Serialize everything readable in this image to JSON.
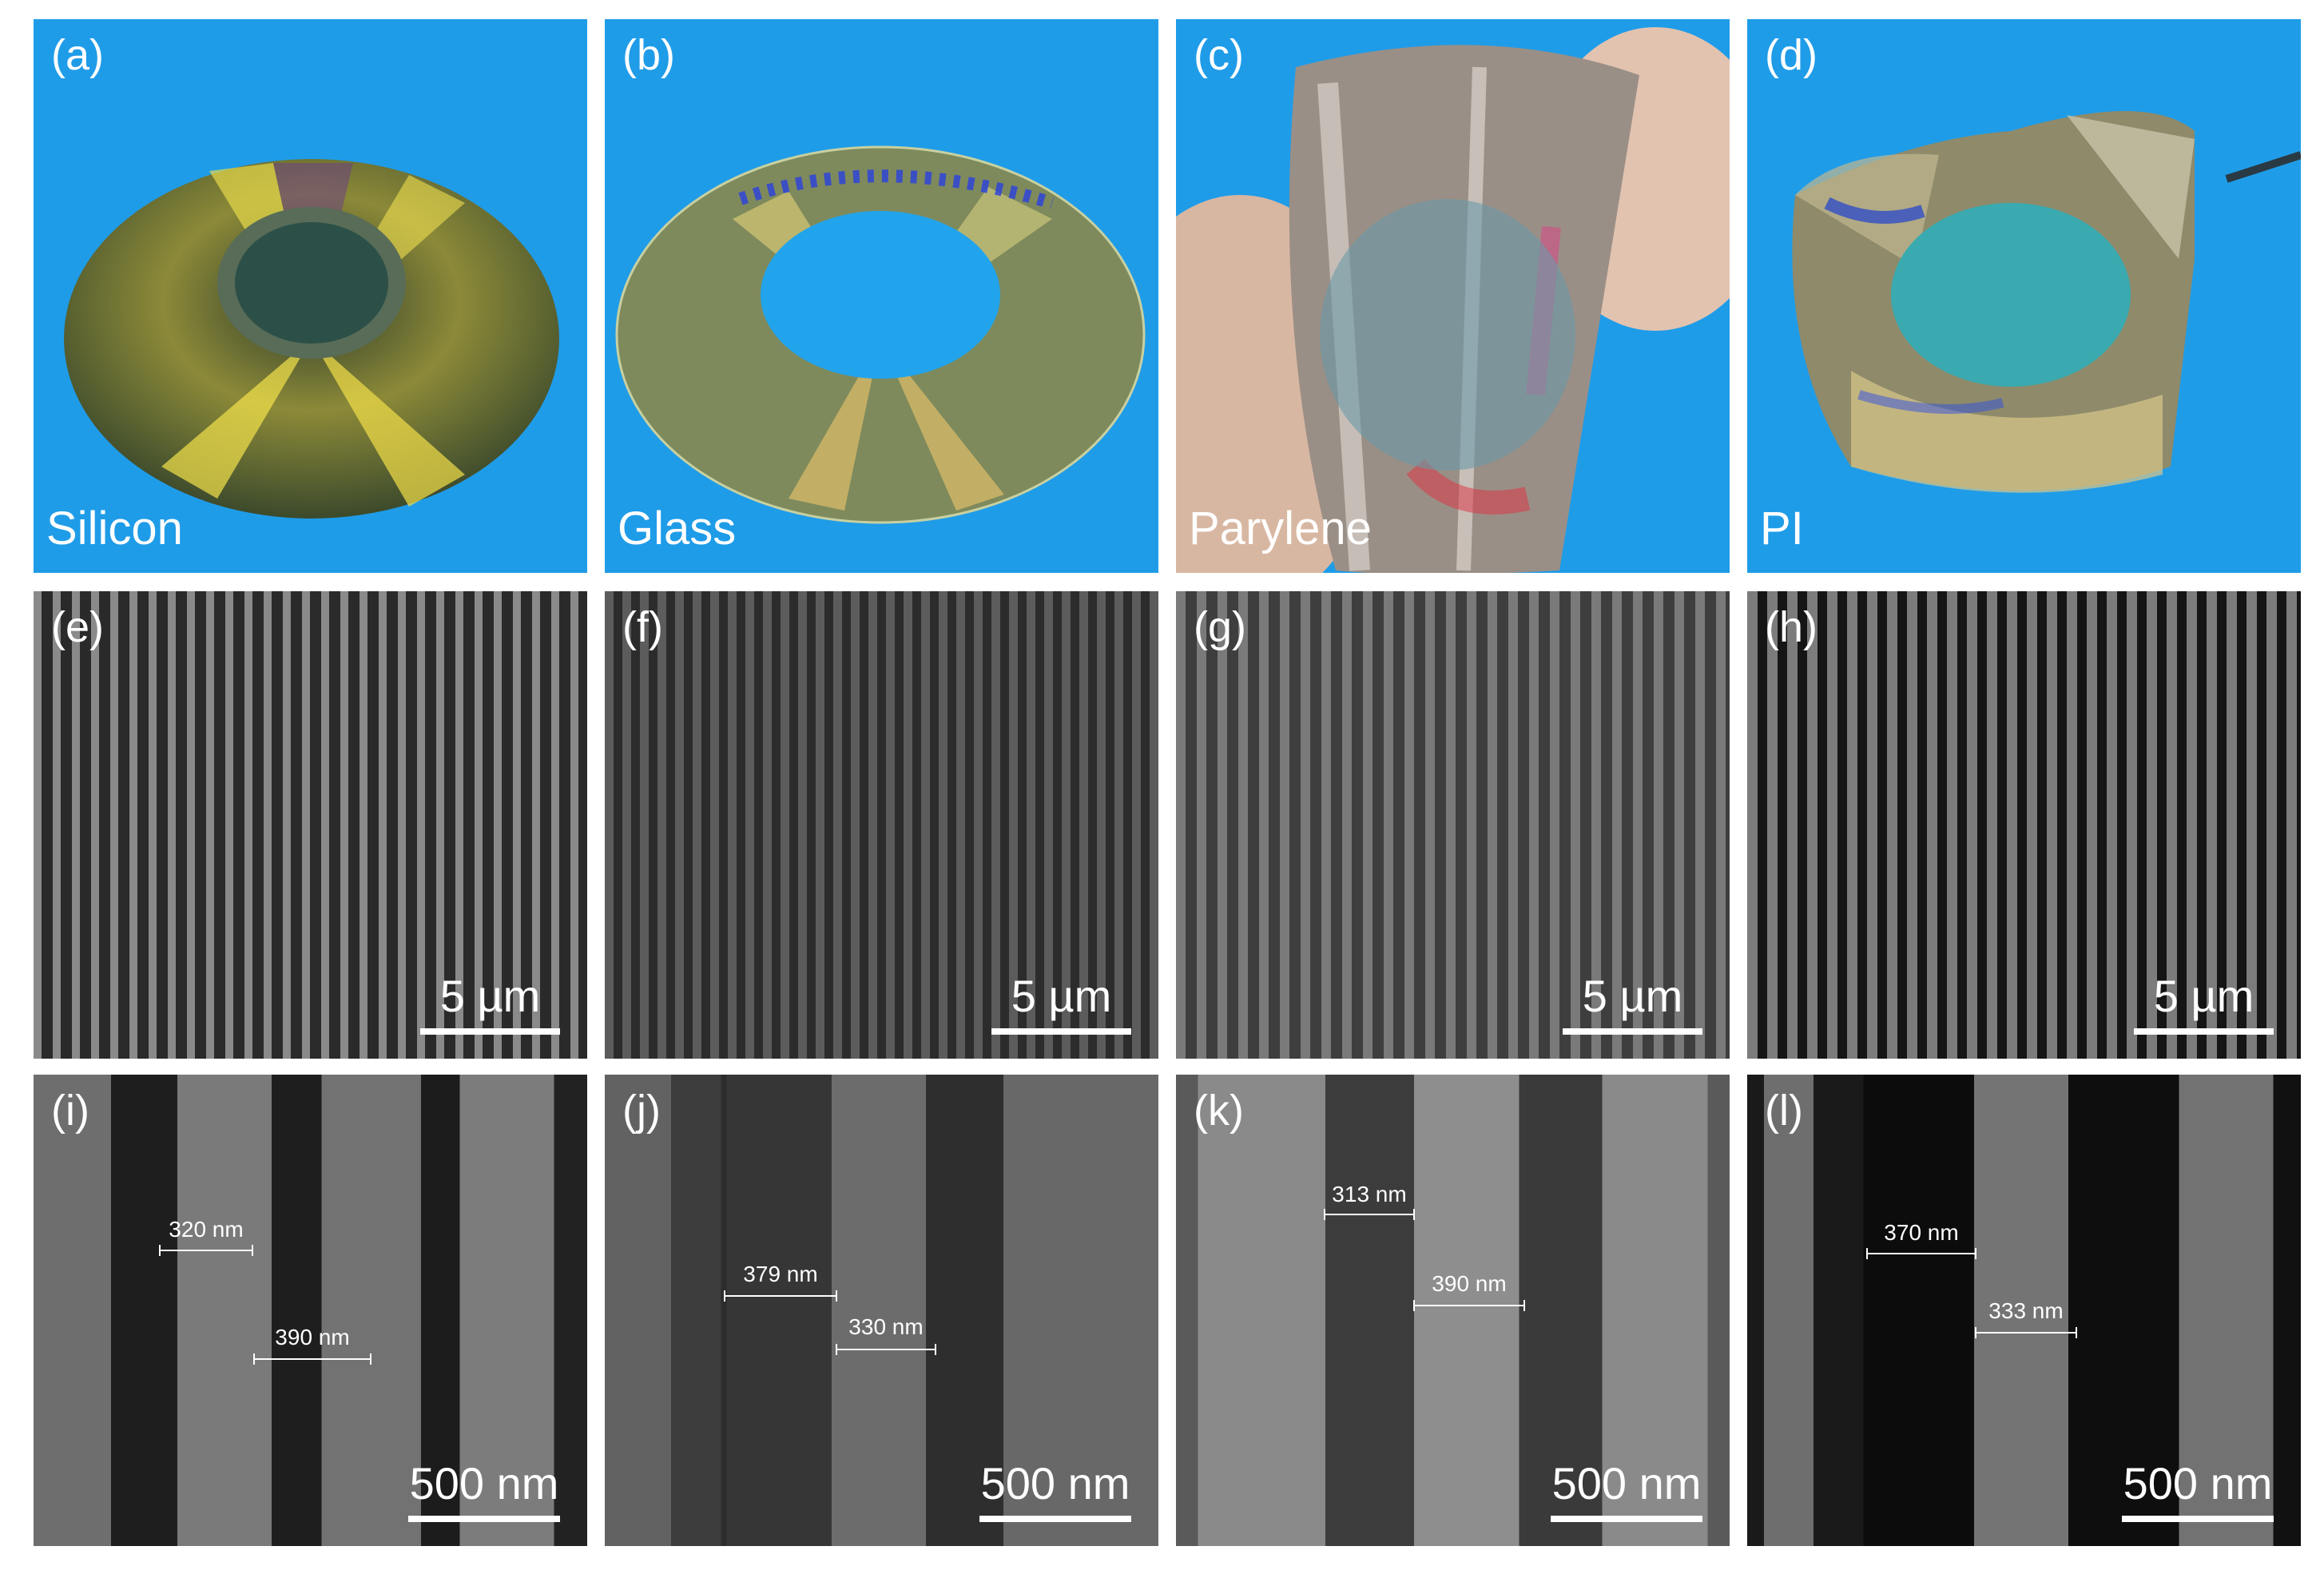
{
  "photos": [
    {
      "label": "(a)",
      "substrate": "Silicon"
    },
    {
      "label": "(b)",
      "substrate": "Glass"
    },
    {
      "label": "(c)",
      "substrate": "Parylene"
    },
    {
      "label": "(d)",
      "substrate": "PI"
    }
  ],
  "sem_low": [
    {
      "label": "(e)",
      "scale": "5 µm"
    },
    {
      "label": "(f)",
      "scale": "5 µm"
    },
    {
      "label": "(g)",
      "scale": "5 µm"
    },
    {
      "label": "(h)",
      "scale": "5 µm"
    }
  ],
  "sem_high": [
    {
      "label": "(i)",
      "scale": "500 nm",
      "measurements": [
        "320 nm",
        "390 nm"
      ]
    },
    {
      "label": "(j)",
      "scale": "500 nm",
      "measurements": [
        "379 nm",
        "330 nm"
      ]
    },
    {
      "label": "(k)",
      "scale": "500 nm",
      "measurements": [
        "313 nm",
        "390 nm"
      ]
    },
    {
      "label": "(l)",
      "scale": "500 nm",
      "measurements": [
        "370 nm",
        "333 nm"
      ]
    }
  ],
  "colors": {
    "photo_background": "#1c9be6",
    "sem_background": "#3a3a3a",
    "annotation": "#ffffff"
  }
}
